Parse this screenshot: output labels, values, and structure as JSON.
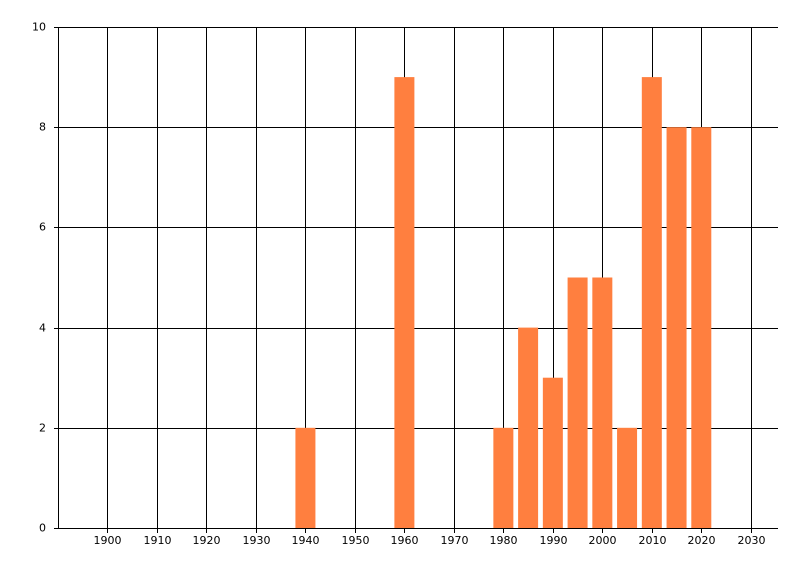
{
  "chart_data": {
    "type": "bar",
    "x": [
      1940,
      1960,
      1980,
      1985,
      1990,
      1995,
      2000,
      2005,
      2010,
      2015,
      2020
    ],
    "values": [
      2,
      9,
      2,
      4,
      3,
      5,
      5,
      2,
      9,
      8,
      8
    ],
    "color": "#ff7f3f",
    "xlim": [
      1890,
      2035.5
    ],
    "xticks": [
      1900,
      1910,
      1920,
      1930,
      1940,
      1950,
      1960,
      1970,
      1980,
      1990,
      2000,
      2010,
      2020,
      2030
    ],
    "ylim": [
      0,
      10
    ],
    "yticks": [
      0,
      2,
      4,
      6,
      8,
      10
    ],
    "grid": true
  }
}
